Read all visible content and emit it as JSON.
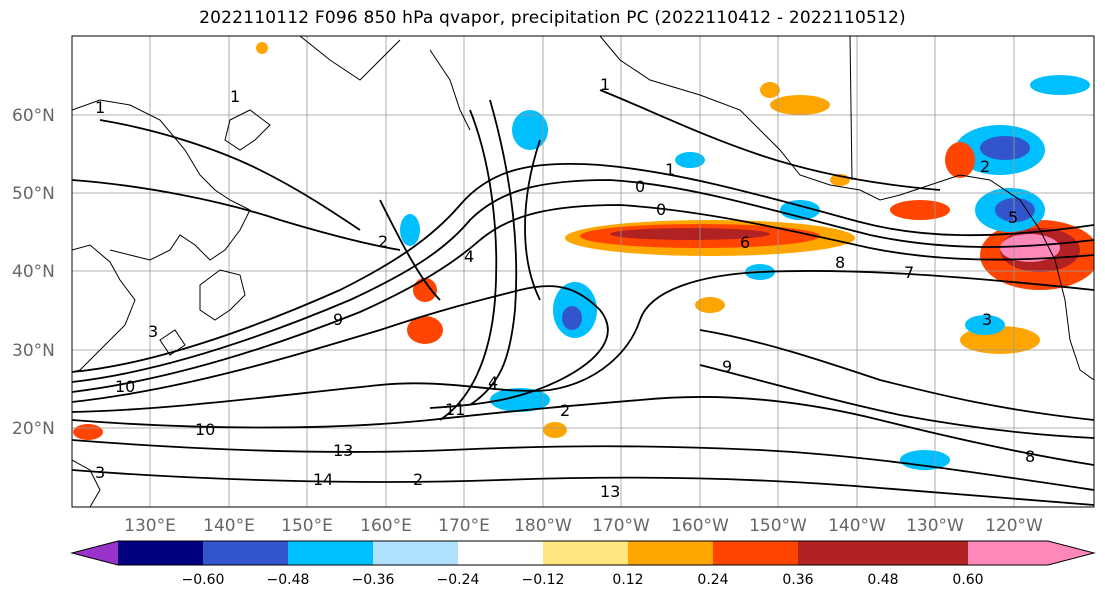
{
  "title": "2022110112 F096 850 hPa qvapor, precipitation PC (2022110412 - 2022110512)",
  "lat_labels": [
    "60°N",
    "50°N",
    "40°N",
    "30°N",
    "20°N"
  ],
  "lon_labels": [
    "130°E",
    "140°E",
    "150°E",
    "160°E",
    "170°E",
    "180°W",
    "170°W",
    "160°W",
    "150°W",
    "140°W",
    "130°W",
    "120°W"
  ],
  "colorbar": {
    "colors": [
      "#9933cc",
      "#000080",
      "#3355cc",
      "#00bfff",
      "#b0e2ff",
      "#ffffff",
      "#ffe680",
      "#ffa500",
      "#ff4500",
      "#b22222",
      "#ff88bb"
    ],
    "labels": [
      "−0.60",
      "−0.48",
      "−0.36",
      "−0.24",
      "−0.12",
      "0.12",
      "0.24",
      "0.36",
      "0.48",
      "0.60"
    ]
  },
  "contour_labels": [
    "1",
    "1",
    "1",
    "1",
    "0",
    "0",
    "2",
    "2",
    "2",
    "2",
    "3",
    "3",
    "3",
    "4",
    "4",
    "5",
    "6",
    "7",
    "8",
    "8",
    "9",
    "9",
    "10",
    "10",
    "11",
    "13",
    "13",
    "14"
  ]
}
